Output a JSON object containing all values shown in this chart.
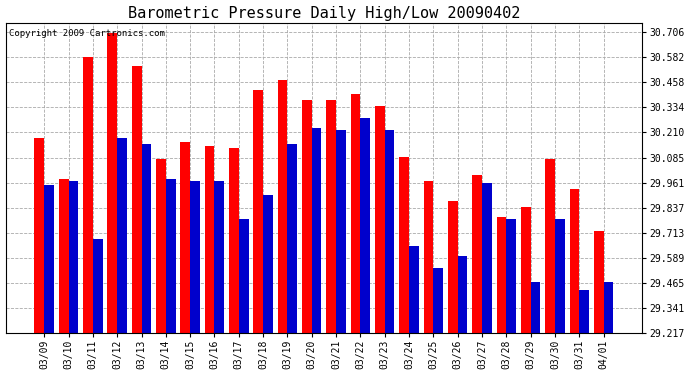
{
  "title": "Barometric Pressure Daily High/Low 20090402",
  "copyright": "Copyright 2009 Cartronics.com",
  "dates": [
    "03/09",
    "03/10",
    "03/11",
    "03/12",
    "03/13",
    "03/14",
    "03/15",
    "03/16",
    "03/17",
    "03/18",
    "03/19",
    "03/20",
    "03/21",
    "03/22",
    "03/23",
    "03/24",
    "03/25",
    "03/26",
    "03/27",
    "03/28",
    "03/29",
    "03/30",
    "03/31",
    "04/01"
  ],
  "highs": [
    30.18,
    29.98,
    30.58,
    30.7,
    30.54,
    30.08,
    30.16,
    30.14,
    30.13,
    30.42,
    30.47,
    30.37,
    30.37,
    30.4,
    30.34,
    30.09,
    29.97,
    29.87,
    30.0,
    29.79,
    29.84,
    30.08,
    29.93,
    29.72
  ],
  "lows": [
    29.95,
    29.97,
    29.68,
    30.18,
    30.15,
    29.98,
    29.97,
    29.97,
    29.78,
    29.9,
    30.15,
    30.23,
    30.22,
    30.28,
    30.22,
    29.65,
    29.54,
    29.6,
    29.96,
    29.78,
    29.47,
    29.78,
    29.43,
    29.47
  ],
  "high_color": "#FF0000",
  "low_color": "#0000CC",
  "bg_color": "#FFFFFF",
  "plot_bg_color": "#FFFFFF",
  "grid_color": "#AAAAAA",
  "yticks": [
    29.217,
    29.341,
    29.465,
    29.589,
    29.713,
    29.837,
    29.961,
    30.085,
    30.21,
    30.334,
    30.458,
    30.582,
    30.706
  ],
  "ylim_low": 29.217,
  "ylim_high": 30.75,
  "title_fontsize": 11,
  "copyright_fontsize": 6.5,
  "tick_fontsize": 7
}
